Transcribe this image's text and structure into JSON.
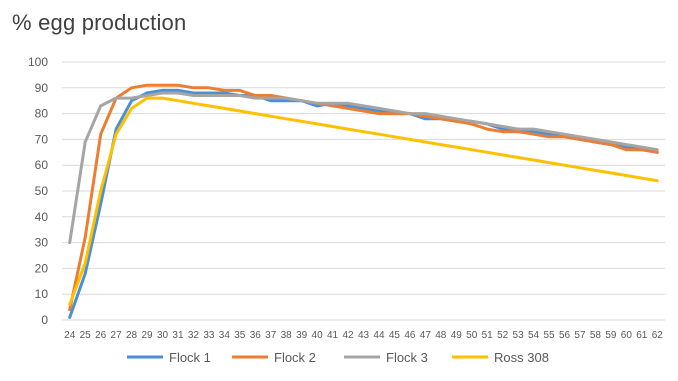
{
  "chart_data": {
    "type": "line",
    "title": "% egg production",
    "xlabel": "",
    "ylabel": "",
    "ylim": [
      0,
      100
    ],
    "yticks": [
      0,
      10,
      20,
      30,
      40,
      50,
      60,
      70,
      80,
      90,
      100
    ],
    "grid": true,
    "legend_position": "bottom",
    "x": [
      24,
      25,
      26,
      27,
      28,
      29,
      30,
      31,
      32,
      33,
      34,
      35,
      36,
      37,
      38,
      39,
      40,
      41,
      42,
      43,
      44,
      45,
      46,
      47,
      48,
      49,
      50,
      51,
      52,
      53,
      54,
      55,
      56,
      57,
      58,
      59,
      60,
      61,
      62
    ],
    "series": [
      {
        "name": "Flock 1",
        "color": "#4a90d9",
        "values": [
          1,
          18,
          45,
          74,
          85,
          88,
          89,
          89,
          88,
          88,
          88,
          87,
          87,
          85,
          85,
          85,
          83,
          84,
          83,
          82,
          81,
          80,
          80,
          78,
          78,
          77,
          77,
          76,
          74,
          74,
          73,
          72,
          71,
          70,
          69,
          68,
          67,
          66,
          65
        ]
      },
      {
        "name": "Flock 2",
        "color": "#ed7d31",
        "values": [
          4,
          32,
          72,
          86,
          90,
          91,
          91,
          91,
          90,
          90,
          89,
          89,
          87,
          87,
          86,
          85,
          84,
          83,
          82,
          81,
          80,
          80,
          80,
          79,
          78,
          77,
          76,
          74,
          73,
          73,
          72,
          71,
          71,
          70,
          69,
          68,
          66,
          66,
          65
        ]
      },
      {
        "name": "Flock 3",
        "color": "#a5a5a5",
        "values": [
          30,
          69,
          83,
          86,
          86,
          87,
          88,
          88,
          87,
          87,
          87,
          87,
          86,
          86,
          86,
          85,
          84,
          84,
          84,
          83,
          82,
          81,
          80,
          80,
          79,
          78,
          77,
          76,
          75,
          74,
          74,
          73,
          72,
          71,
          70,
          69,
          68,
          67,
          66
        ]
      },
      {
        "name": "Ross 308",
        "color": "#ffc000",
        "values": [
          6,
          22,
          50,
          72,
          82,
          86,
          86,
          85,
          84,
          83,
          82,
          81,
          80,
          79,
          78,
          77,
          76,
          75,
          74,
          73,
          72,
          71,
          70,
          69,
          68,
          67,
          66,
          65,
          64,
          63,
          62,
          61,
          60,
          59,
          58,
          57,
          56,
          55,
          54
        ]
      }
    ]
  }
}
